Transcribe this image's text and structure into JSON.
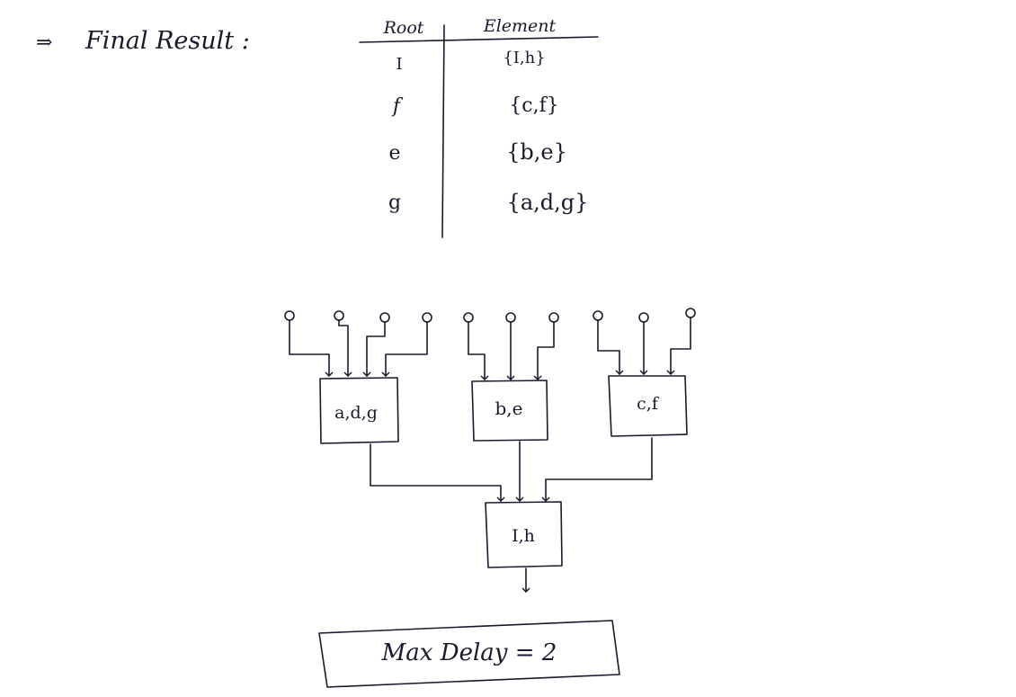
{
  "header": {
    "arrow": "⇒",
    "title": "Final Result :"
  },
  "table": {
    "headers": [
      "Root",
      "Element"
    ],
    "rows": [
      {
        "root": "I",
        "element": "{I,h}"
      },
      {
        "root": "f",
        "element": "{c,f}"
      },
      {
        "root": "e",
        "element": "{b,e}"
      },
      {
        "root": "g",
        "element": "{a,d,g}"
      }
    ]
  },
  "diagram": {
    "blocks": [
      {
        "id": "adg",
        "label": "a,d,g",
        "inputs": 4
      },
      {
        "id": "be",
        "label": "b,e",
        "inputs": 3
      },
      {
        "id": "cf",
        "label": "c,f",
        "inputs": 3
      }
    ],
    "output_block": {
      "id": "Ih",
      "label": "I,h"
    }
  },
  "result": {
    "text": "Max Delay = 2"
  }
}
